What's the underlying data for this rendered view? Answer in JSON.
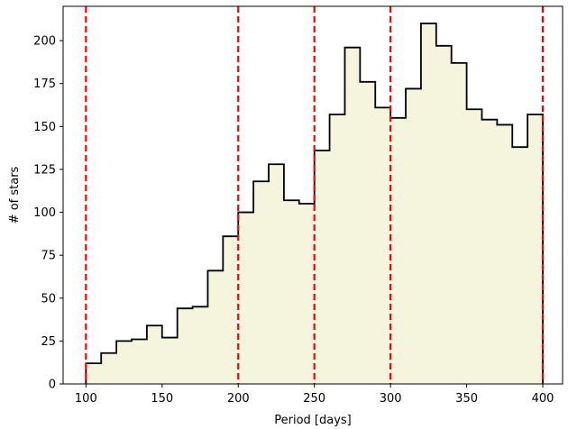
{
  "chart_data": {
    "type": "histogram",
    "xlabel": "Period [days]",
    "ylabel": "# of stars",
    "xlim": [
      85,
      413
    ],
    "ylim": [
      0,
      220
    ],
    "xticks": [
      100,
      150,
      200,
      250,
      300,
      350,
      400
    ],
    "yticks": [
      0,
      25,
      50,
      75,
      100,
      125,
      150,
      175,
      200
    ],
    "bin_edges": [
      100,
      110,
      120,
      130,
      140,
      150,
      160,
      170,
      180,
      190,
      200,
      210,
      220,
      230,
      240,
      250,
      260,
      270,
      280,
      290,
      300,
      310,
      320,
      330,
      340,
      350,
      360,
      370,
      380,
      390,
      400
    ],
    "counts": [
      12,
      18,
      25,
      26,
      34,
      27,
      44,
      45,
      66,
      86,
      100,
      118,
      128,
      107,
      105,
      136,
      157,
      196,
      176,
      161,
      155,
      172,
      210,
      197,
      187,
      160,
      154,
      151,
      138,
      157
    ],
    "vlines": [
      100,
      200,
      250,
      300,
      400
    ],
    "colors": {
      "fill": "#f5f4dc",
      "edge": "#000000",
      "vline": "#ff0000"
    }
  }
}
